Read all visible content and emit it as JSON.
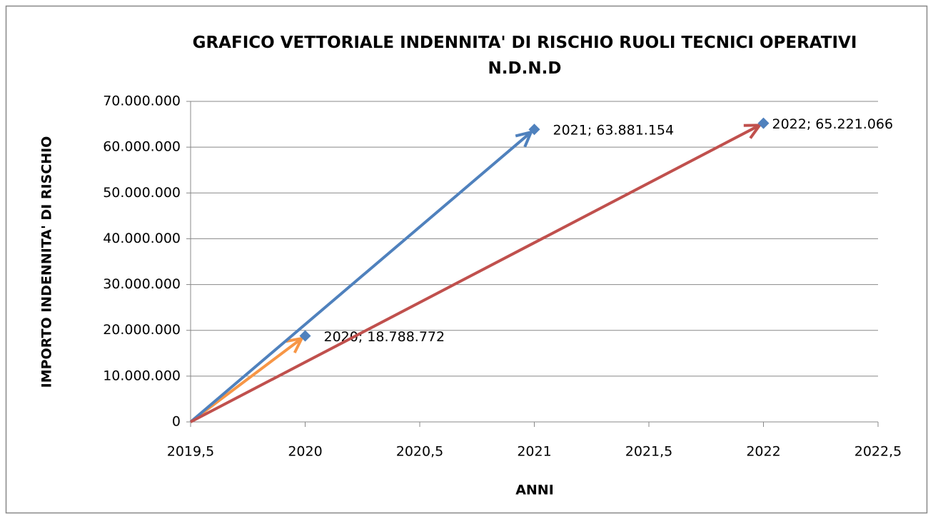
{
  "chart_data": {
    "type": "scatter",
    "title": "GRAFICO VETTORIALE INDENNITA' DI RISCHIO RUOLI TECNICI OPERATIVI N.D.N.D",
    "x_label": "ANNI",
    "y_label": "IMPORTO INDENNITA' DI RISCHIO",
    "series": [
      {
        "color": "#4f81bd",
        "x": [
          2020,
          2021,
          2022
        ],
        "values": [
          18788772,
          63881154,
          65221066
        ],
        "value_labels": [
          "2020; 18.788.772",
          "2021; 63.881.154",
          "2022; 65.221.066"
        ],
        "arrow_colors": [
          "#f79646",
          "#4f81bd",
          "#c0504d"
        ]
      }
    ],
    "xlim": [
      2019.5,
      2022.5
    ],
    "xticks": [
      {
        "value": 2019.5,
        "label": "2019,5"
      },
      2020,
      {
        "value": 2020.5,
        "label": "2020,5"
      },
      2021,
      {
        "value": 2021.5,
        "label": "2021,5"
      },
      2022,
      {
        "value": 2022.5,
        "label": "2022,5"
      }
    ],
    "ylim": [
      0,
      70000000
    ],
    "yticks": [
      0,
      {
        "value": 10000000,
        "label": "10.000.000"
      },
      {
        "value": 20000000,
        "label": "20.000.000"
      },
      {
        "value": 30000000,
        "label": "30.000.000"
      },
      {
        "value": 40000000,
        "label": "40.000.000"
      },
      {
        "value": 50000000,
        "label": "50.000.000"
      },
      {
        "value": 60000000,
        "label": "60.000.000"
      },
      {
        "value": 70000000,
        "label": "70.000.000"
      }
    ],
    "grid": true
  }
}
